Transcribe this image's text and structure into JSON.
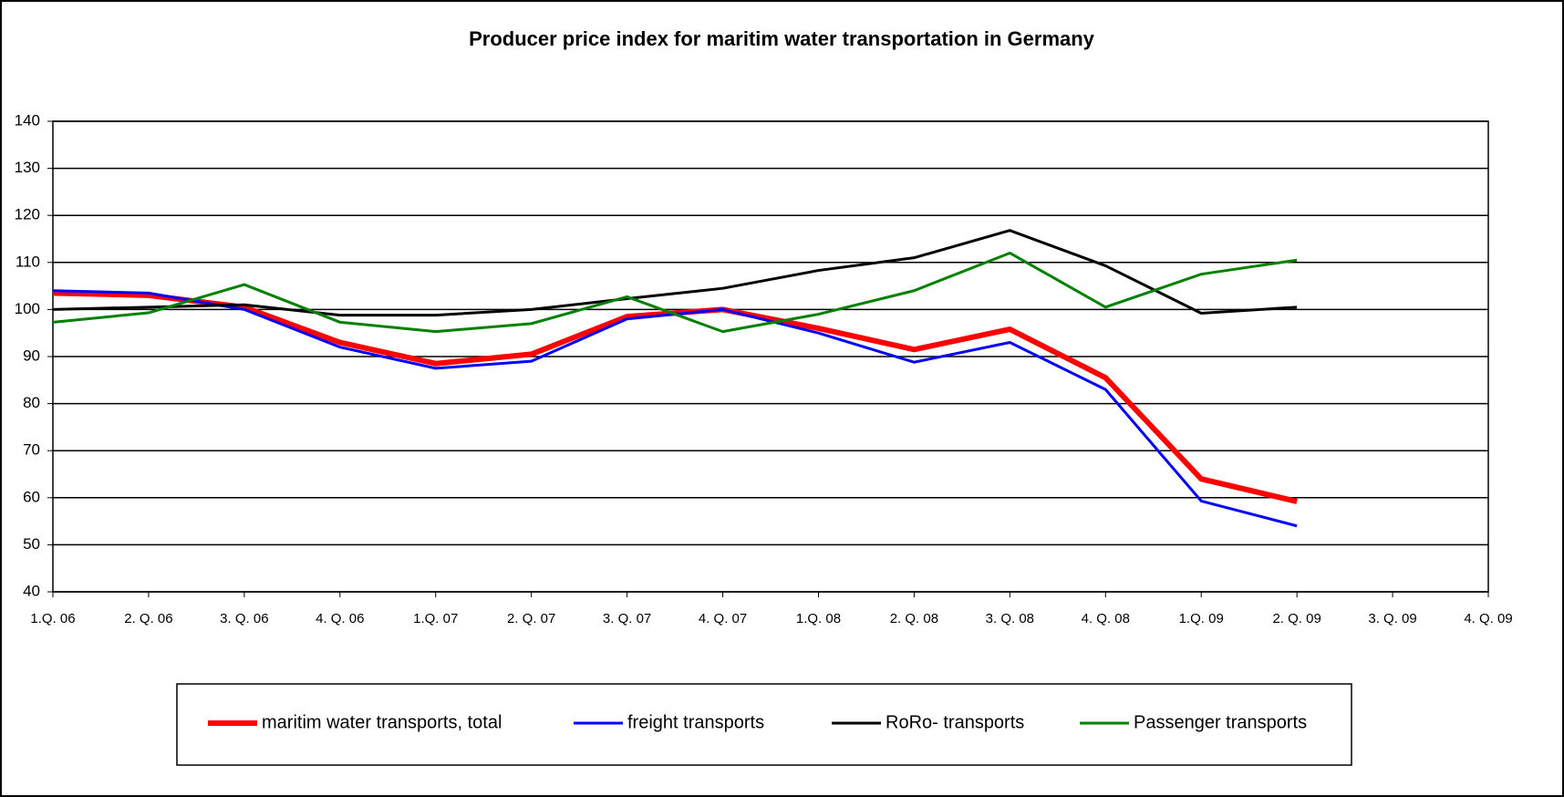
{
  "chart_data": {
    "type": "line",
    "title": "Producer price index for maritim water transportation in Germany",
    "categories": [
      "1.Q. 06",
      "2. Q. 06",
      "3. Q. 06",
      "4. Q. 06",
      "1.Q. 07",
      "2. Q. 07",
      "3. Q. 07",
      "4. Q. 07",
      "1.Q. 08",
      "2. Q. 08",
      "3. Q. 08",
      "4. Q. 08",
      "1.Q. 09",
      "2. Q. 09",
      "3. Q. 09",
      "4. Q. 09"
    ],
    "series": [
      {
        "name": "maritim water transports, total",
        "color": "#ff0000",
        "values": [
          103.5,
          103,
          100.5,
          93,
          88.5,
          90.5,
          98.5,
          100,
          96,
          91.5,
          95.8,
          85.5,
          64,
          59.2,
          null,
          null
        ]
      },
      {
        "name": "freight transports",
        "color": "#0000ff",
        "values": [
          104,
          103.5,
          100,
          92,
          87.5,
          89,
          98,
          100,
          95,
          88.8,
          93,
          83,
          59.3,
          54,
          null,
          null
        ]
      },
      {
        "name": "RoRo- transports",
        "color": "#000000",
        "values": [
          100,
          100.5,
          101,
          98.8,
          98.8,
          100,
          102.3,
          104.5,
          108.3,
          111,
          116.8,
          109.3,
          99.2,
          100.5,
          null,
          null
        ]
      },
      {
        "name": "Passenger transports",
        "color": "#008000",
        "values": [
          97.3,
          99.3,
          105.3,
          97.3,
          95.3,
          97,
          102.7,
          95.3,
          99,
          104,
          112,
          100.5,
          107.5,
          110.5,
          null,
          null
        ]
      }
    ],
    "ylim": [
      40,
      140
    ],
    "yticks": [
      40,
      50,
      60,
      70,
      80,
      90,
      100,
      110,
      120,
      130,
      140
    ],
    "grid": true
  }
}
